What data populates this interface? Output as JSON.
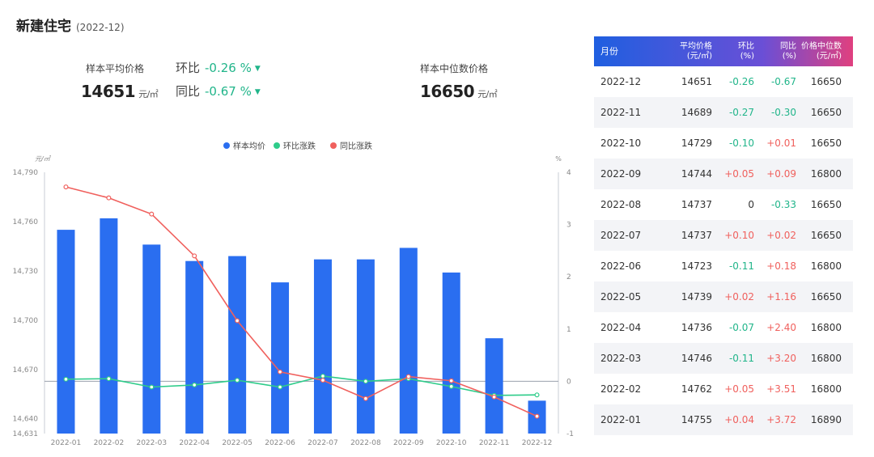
{
  "header": {
    "title": "新建住宅",
    "period": "(2022-12)"
  },
  "kpis": {
    "avg_label": "样本平均价格",
    "avg_value": "14651",
    "avg_unit": "元/㎡",
    "mom_label": "环比",
    "mom_value": "-0.26 %",
    "yoy_label": "同比",
    "yoy_value": "-0.67 %",
    "median_label": "样本中位数价格",
    "median_value": "16650",
    "median_unit": "元/㎡"
  },
  "chart_data": {
    "type": "bar",
    "categories": [
      "2022-01",
      "2022-02",
      "2022-03",
      "2022-04",
      "2022-05",
      "2022-06",
      "2022-07",
      "2022-08",
      "2022-09",
      "2022-10",
      "2022-11",
      "2022-12"
    ],
    "series": [
      {
        "name": "样本均价",
        "type": "bar",
        "axis": "left",
        "color": "#2a6ef0",
        "values": [
          14755,
          14762,
          14746,
          14736,
          14739,
          14723,
          14737,
          14737,
          14744,
          14729,
          14689,
          14651
        ]
      },
      {
        "name": "环比涨跌",
        "type": "line",
        "axis": "right",
        "color": "#2ecc8a",
        "values": [
          0.04,
          0.05,
          -0.11,
          -0.07,
          0.02,
          -0.11,
          0.1,
          0,
          0.05,
          -0.1,
          -0.27,
          -0.26
        ]
      },
      {
        "name": "同比涨跌",
        "type": "line",
        "axis": "right",
        "color": "#f0605d",
        "values": [
          3.72,
          3.51,
          3.2,
          2.4,
          1.16,
          0.18,
          0.02,
          -0.33,
          0.09,
          0.01,
          -0.3,
          -0.67
        ]
      }
    ],
    "left_axis": {
      "unit": "元/㎡",
      "ticks": [
        "14,790",
        "14,760",
        "14,730",
        "14,700",
        "14,670",
        "14,640",
        "14,631"
      ],
      "ylim": [
        14631,
        14790
      ]
    },
    "right_axis": {
      "unit": "%",
      "ticks": [
        "4",
        "3",
        "2",
        "1",
        "0",
        "-1"
      ],
      "ylim": [
        -1,
        4
      ]
    },
    "legend_position": "top-center"
  },
  "table": {
    "headers": [
      "月份",
      "平均价格\n(元/㎡)",
      "环比\n(%)",
      "同比\n(%)",
      "价格中位数\n(元/㎡)"
    ],
    "rows": [
      [
        "2022-12",
        "14651",
        "-0.26",
        "-0.67",
        "16650"
      ],
      [
        "2022-11",
        "14689",
        "-0.27",
        "-0.30",
        "16650"
      ],
      [
        "2022-10",
        "14729",
        "-0.10",
        "+0.01",
        "16650"
      ],
      [
        "2022-09",
        "14744",
        "+0.05",
        "+0.09",
        "16800"
      ],
      [
        "2022-08",
        "14737",
        "0",
        "-0.33",
        "16650"
      ],
      [
        "2022-07",
        "14737",
        "+0.10",
        "+0.02",
        "16650"
      ],
      [
        "2022-06",
        "14723",
        "-0.11",
        "+0.18",
        "16800"
      ],
      [
        "2022-05",
        "14739",
        "+0.02",
        "+1.16",
        "16650"
      ],
      [
        "2022-04",
        "14736",
        "-0.07",
        "+2.40",
        "16800"
      ],
      [
        "2022-03",
        "14746",
        "-0.11",
        "+3.20",
        "16800"
      ],
      [
        "2022-02",
        "14762",
        "+0.05",
        "+3.51",
        "16800"
      ],
      [
        "2022-01",
        "14755",
        "+0.04",
        "+3.72",
        "16890"
      ]
    ],
    "colors": {
      "negative": "#21b58a",
      "positive": "#f0605d"
    }
  }
}
